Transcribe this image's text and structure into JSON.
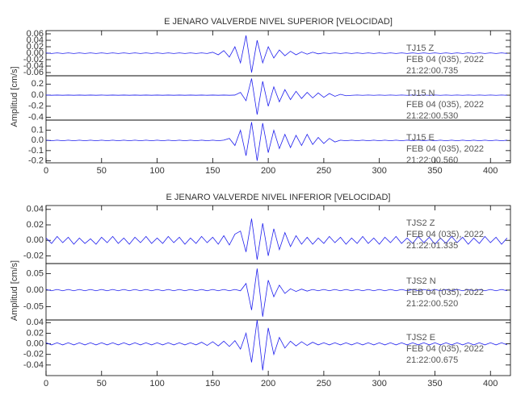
{
  "chart_data": [
    {
      "type": "line",
      "title": "E JENARO VALVERDE NIVEL SUPERIOR [VELOCIDAD]",
      "ylabel": "Amplitud [cm/s]",
      "xlim": [
        0,
        418
      ],
      "xticks": [
        0,
        50,
        100,
        150,
        200,
        250,
        300,
        350,
        400
      ],
      "x": [
        0,
        5,
        10,
        15,
        20,
        25,
        30,
        35,
        40,
        45,
        50,
        55,
        60,
        65,
        70,
        75,
        80,
        85,
        90,
        95,
        100,
        105,
        110,
        115,
        120,
        125,
        130,
        135,
        140,
        145,
        150,
        155,
        160,
        165,
        170,
        175,
        180,
        185,
        190,
        195,
        200,
        205,
        210,
        215,
        220,
        225,
        230,
        235,
        240,
        245,
        250,
        255,
        260,
        265,
        270,
        275,
        280,
        285,
        290,
        295,
        300,
        305,
        310,
        315,
        320,
        325,
        330,
        335,
        340,
        345,
        350,
        355,
        360,
        365,
        370,
        375,
        380,
        385,
        390,
        395,
        400,
        405,
        410,
        415
      ],
      "panels": [
        {
          "ylim": [
            -0.07,
            0.07
          ],
          "yticks": [
            {
              "value": -0.06,
              "label": "-0.06"
            },
            {
              "value": -0.04,
              "label": "-0.04"
            },
            {
              "value": -0.02,
              "label": "-0.02"
            },
            {
              "value": 0,
              "label": "0.00"
            },
            {
              "value": 0.02,
              "label": "0.02"
            },
            {
              "value": 0.04,
              "label": "0.04"
            },
            {
              "value": 0.06,
              "label": "0.06"
            }
          ],
          "annotations": [
            "TJ15   Z",
            "FEB 04 (035), 2022",
            "21:22:00.735"
          ],
          "series": [
            {
              "color": "#2020ee",
              "values": [
                0.001,
                -0.001,
                0.001,
                -0.001,
                0.001,
                -0.001,
                0.001,
                -0.001,
                0.001,
                -0.001,
                0.001,
                -0.001,
                0.001,
                -0.001,
                0.001,
                -0.001,
                0.001,
                -0.001,
                0.001,
                -0.001,
                0.001,
                -0.001,
                0.001,
                -0.001,
                0.001,
                -0.001,
                0.001,
                -0.001,
                0.001,
                -0.001,
                0.003,
                -0.005,
                0.008,
                -0.012,
                0.02,
                -0.03,
                0.055,
                -0.06,
                0.04,
                -0.03,
                0.02,
                -0.015,
                0.01,
                -0.008,
                0.006,
                -0.005,
                0.004,
                -0.003,
                0.003,
                -0.002,
                0.001,
                -0.001,
                0.001,
                -0.001,
                0.001,
                -0.001,
                0.001,
                -0.001,
                0.001,
                -0.001,
                0.001,
                -0.001,
                0.001,
                -0.001,
                0.001,
                -0.001,
                0.001,
                -0.001,
                0.001,
                -0.001,
                0.001,
                -0.001,
                0.001,
                -0.001,
                0.001,
                -0.001,
                0.001,
                -0.001,
                0.001,
                -0.001,
                0.001,
                -0.001,
                0.001,
                -0.001
              ]
            }
          ]
        },
        {
          "ylim": [
            -0.45,
            0.35
          ],
          "yticks": [
            {
              "value": -0.4,
              "label": "-0.4"
            },
            {
              "value": -0.2,
              "label": "-0.2"
            },
            {
              "value": 0,
              "label": "0.0"
            },
            {
              "value": 0.2,
              "label": "0.2"
            }
          ],
          "annotations": [
            "TJ15   N",
            "FEB 04 (035), 2022",
            "21:22:00.530"
          ],
          "series": [
            {
              "color": "#2020ee",
              "values": [
                0.002,
                -0.002,
                0.002,
                -0.002,
                0.002,
                -0.002,
                0.002,
                -0.002,
                0.002,
                -0.002,
                0.002,
                -0.002,
                0.002,
                -0.002,
                0.002,
                -0.002,
                0.002,
                -0.002,
                0.002,
                -0.002,
                0.002,
                -0.002,
                0.002,
                -0.002,
                0.002,
                -0.002,
                0.002,
                -0.002,
                0.002,
                -0.002,
                0.002,
                -0.002,
                0.002,
                -0.002,
                0.002,
                0.05,
                -0.1,
                0.3,
                -0.35,
                0.25,
                -0.2,
                0.15,
                -0.12,
                0.1,
                -0.08,
                0.07,
                -0.06,
                0.05,
                -0.05,
                0.04,
                -0.04,
                0.03,
                -0.02,
                0.015,
                -0.01,
                -0.003,
                0.003,
                -0.003,
                0.003,
                -0.003,
                0.003,
                -0.003,
                0.003,
                -0.003,
                0.003,
                -0.003,
                0.003,
                -0.003,
                0.003,
                -0.003,
                0.003,
                -0.003,
                0.003,
                -0.003,
                0.003,
                -0.003,
                0.003,
                -0.003,
                0.003,
                -0.003,
                0.003,
                -0.003,
                0.003,
                -0.003
              ]
            }
          ]
        },
        {
          "ylim": [
            -0.22,
            0.2
          ],
          "yticks": [
            {
              "value": -0.2,
              "label": "-0.2"
            },
            {
              "value": -0.1,
              "label": "-0.1"
            },
            {
              "value": 0,
              "label": "0.0"
            },
            {
              "value": 0.1,
              "label": "0.1"
            }
          ],
          "annotations": [
            "TJ15   E",
            "FEB 04 (035), 2022",
            "21:22:00.560"
          ],
          "series": [
            {
              "color": "#2020ee",
              "values": [
                0.003,
                -0.003,
                0.003,
                -0.003,
                0.003,
                -0.003,
                0.003,
                -0.003,
                0.003,
                -0.003,
                0.003,
                -0.003,
                0.003,
                -0.003,
                0.003,
                -0.003,
                0.003,
                -0.003,
                0.003,
                -0.003,
                0.003,
                -0.003,
                0.003,
                -0.003,
                0.003,
                -0.003,
                0.003,
                -0.003,
                0.003,
                -0.003,
                0.003,
                -0.003,
                0.003,
                0.02,
                -0.05,
                0.1,
                -0.15,
                0.18,
                -0.2,
                0.17,
                -0.12,
                0.1,
                -0.08,
                0.06,
                -0.07,
                0.05,
                -0.05,
                0.06,
                -0.04,
                0.03,
                -0.03,
                0.02,
                -0.015,
                0.003,
                -0.003,
                0.003,
                -0.003,
                0.003,
                -0.003,
                0.003,
                -0.003,
                0.003,
                -0.003,
                0.003,
                -0.003,
                0.003,
                -0.003,
                0.003,
                -0.003,
                0.003,
                -0.003,
                0.003,
                -0.003,
                0.003,
                -0.003,
                0.003,
                -0.003,
                0.003,
                -0.003,
                0.003,
                -0.003,
                0.003,
                -0.003,
                0.003
              ]
            }
          ]
        }
      ]
    },
    {
      "type": "line",
      "title": "E JENARO VALVERDE NIVEL INFERIOR [VELOCIDAD]",
      "ylabel": "Amplitud [cm/s]",
      "xlim": [
        0,
        418
      ],
      "xticks": [
        0,
        50,
        100,
        150,
        200,
        250,
        300,
        350,
        400
      ],
      "x": [
        0,
        5,
        10,
        15,
        20,
        25,
        30,
        35,
        40,
        45,
        50,
        55,
        60,
        65,
        70,
        75,
        80,
        85,
        90,
        95,
        100,
        105,
        110,
        115,
        120,
        125,
        130,
        135,
        140,
        145,
        150,
        155,
        160,
        165,
        170,
        175,
        180,
        185,
        190,
        195,
        200,
        205,
        210,
        215,
        220,
        225,
        230,
        235,
        240,
        245,
        250,
        255,
        260,
        265,
        270,
        275,
        280,
        285,
        290,
        295,
        300,
        305,
        310,
        315,
        320,
        325,
        330,
        335,
        340,
        345,
        350,
        355,
        360,
        365,
        370,
        375,
        380,
        385,
        390,
        395,
        400,
        405,
        410,
        415
      ],
      "panels": [
        {
          "ylim": [
            -0.03,
            0.045
          ],
          "yticks": [
            {
              "value": -0.02,
              "label": "-0.02"
            },
            {
              "value": 0,
              "label": "0.00"
            },
            {
              "value": 0.02,
              "label": "0.02"
            },
            {
              "value": 0.04,
              "label": "0.04"
            }
          ],
          "annotations": [
            "TJS2   Z",
            "FEB 04 (035), 2022",
            "21:22:01.335"
          ],
          "series": [
            {
              "color": "#2020ee",
              "values": [
                0.003,
                -0.004,
                0.005,
                -0.003,
                0.004,
                -0.005,
                0.003,
                -0.004,
                0.002,
                -0.005,
                0.004,
                -0.003,
                0.005,
                -0.004,
                0.003,
                -0.005,
                0.004,
                -0.003,
                0.005,
                -0.004,
                0.003,
                -0.004,
                0.005,
                -0.003,
                0.004,
                -0.005,
                0.003,
                -0.004,
                0.005,
                -0.003,
                0.004,
                -0.005,
                0.006,
                -0.006,
                0.008,
                0.012,
                -0.015,
                0.028,
                -0.025,
                0.022,
                -0.02,
                0.015,
                -0.012,
                0.01,
                -0.008,
                0.006,
                -0.005,
                0.004,
                -0.005,
                0.003,
                -0.004,
                0.005,
                -0.003,
                0.004,
                -0.005,
                0.003,
                -0.004,
                0.005,
                -0.004,
                0.003,
                -0.005,
                0.004,
                -0.003,
                0.005,
                -0.004,
                0.003,
                -0.004,
                0.005,
                -0.003,
                0.004,
                -0.005,
                0.003,
                -0.004,
                0.005,
                -0.003,
                0.004,
                -0.005,
                0.003,
                -0.004,
                0.005,
                -0.003,
                0.004,
                -0.005,
                0.003
              ]
            }
          ]
        },
        {
          "ylim": [
            -0.09,
            0.08
          ],
          "yticks": [
            {
              "value": -0.05,
              "label": "-0.05"
            },
            {
              "value": 0,
              "label": "0.00"
            },
            {
              "value": 0.05,
              "label": "0.05"
            }
          ],
          "annotations": [
            "TJS2   N",
            "FEB 04 (035), 2022",
            "21:22:00.520"
          ],
          "series": [
            {
              "color": "#2020ee",
              "values": [
                0.002,
                -0.002,
                0.002,
                -0.002,
                0.002,
                -0.002,
                0.002,
                -0.002,
                0.002,
                -0.002,
                0.002,
                -0.002,
                0.002,
                -0.002,
                0.002,
                -0.002,
                0.002,
                -0.002,
                0.002,
                -0.002,
                0.002,
                -0.002,
                0.002,
                -0.002,
                0.002,
                -0.002,
                0.002,
                -0.002,
                0.002,
                -0.002,
                0.002,
                -0.002,
                0.002,
                -0.002,
                0.002,
                -0.002,
                0.02,
                -0.06,
                0.065,
                -0.08,
                0.03,
                -0.02,
                0.015,
                -0.01,
                0.004,
                -0.004,
                0.003,
                -0.003,
                0.002,
                -0.002,
                0.002,
                -0.002,
                0.002,
                -0.002,
                0.002,
                -0.002,
                0.002,
                -0.002,
                0.002,
                -0.002,
                0.002,
                -0.002,
                0.002,
                -0.002,
                0.002,
                -0.002,
                0.002,
                -0.002,
                0.002,
                -0.002,
                0.002,
                -0.002,
                0.002,
                -0.002,
                0.002,
                -0.002,
                0.002,
                -0.002,
                0.002,
                -0.002,
                0.002,
                -0.002,
                0.002,
                -0.002
              ]
            }
          ]
        },
        {
          "ylim": [
            -0.06,
            0.045
          ],
          "yticks": [
            {
              "value": -0.04,
              "label": "-0.04"
            },
            {
              "value": -0.02,
              "label": "-0.02"
            },
            {
              "value": 0,
              "label": "0.00"
            },
            {
              "value": 0.02,
              "label": "0.02"
            },
            {
              "value": 0.04,
              "label": "0.04"
            }
          ],
          "annotations": [
            "TJS2   E",
            "FEB 04 (035), 2022",
            "21:22:00.675"
          ],
          "series": [
            {
              "color": "#2020ee",
              "values": [
                0.002,
                -0.002,
                0.002,
                -0.002,
                0.002,
                -0.002,
                0.002,
                -0.002,
                0.002,
                -0.002,
                0.002,
                -0.002,
                0.002,
                -0.002,
                0.002,
                -0.002,
                0.002,
                -0.002,
                0.002,
                -0.002,
                0.002,
                -0.002,
                0.002,
                -0.002,
                0.002,
                -0.002,
                0.002,
                -0.002,
                0.003,
                -0.003,
                0.004,
                -0.004,
                0.005,
                -0.005,
                0.006,
                -0.01,
                0.02,
                -0.035,
                0.045,
                -0.05,
                0.03,
                -0.02,
                0.012,
                -0.008,
                0.005,
                -0.004,
                0.004,
                -0.003,
                0.003,
                -0.002,
                0.002,
                -0.002,
                0.002,
                -0.002,
                0.002,
                -0.002,
                0.002,
                -0.002,
                0.002,
                -0.002,
                0.002,
                -0.002,
                0.002,
                -0.002,
                0.002,
                -0.002,
                0.002,
                -0.002,
                0.002,
                -0.002,
                0.002,
                -0.002,
                0.002,
                -0.002,
                0.002,
                -0.002,
                0.002,
                -0.002,
                0.002,
                -0.002,
                0.002,
                -0.002,
                0.002,
                -0.002
              ]
            }
          ]
        }
      ]
    }
  ]
}
